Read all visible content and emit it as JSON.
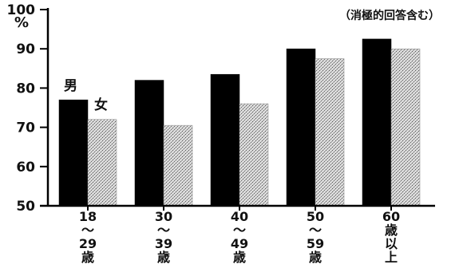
{
  "chart_data": {
    "type": "bar",
    "unit": "%",
    "note": "（消極的回答含む）",
    "categories": [
      [
        "18",
        "～",
        "29",
        "歳"
      ],
      [
        "30",
        "～",
        "39",
        "歳"
      ],
      [
        "40",
        "～",
        "49",
        "歳"
      ],
      [
        "50",
        "～",
        "59",
        "歳"
      ],
      [
        "60",
        "歳",
        "以",
        "上"
      ]
    ],
    "series": [
      {
        "name": "男",
        "values": [
          77,
          82,
          83.5,
          90,
          92.5
        ],
        "color": "#000000",
        "pattern": "solid"
      },
      {
        "name": "女",
        "values": [
          72,
          70.5,
          76,
          87.5,
          90
        ],
        "color": "#b8b8b8",
        "pattern": "stipple"
      }
    ],
    "ylim": [
      50,
      100
    ],
    "yticks": [
      50,
      60,
      70,
      80,
      90,
      100
    ],
    "legend_placement": "inline-over-first-group"
  }
}
